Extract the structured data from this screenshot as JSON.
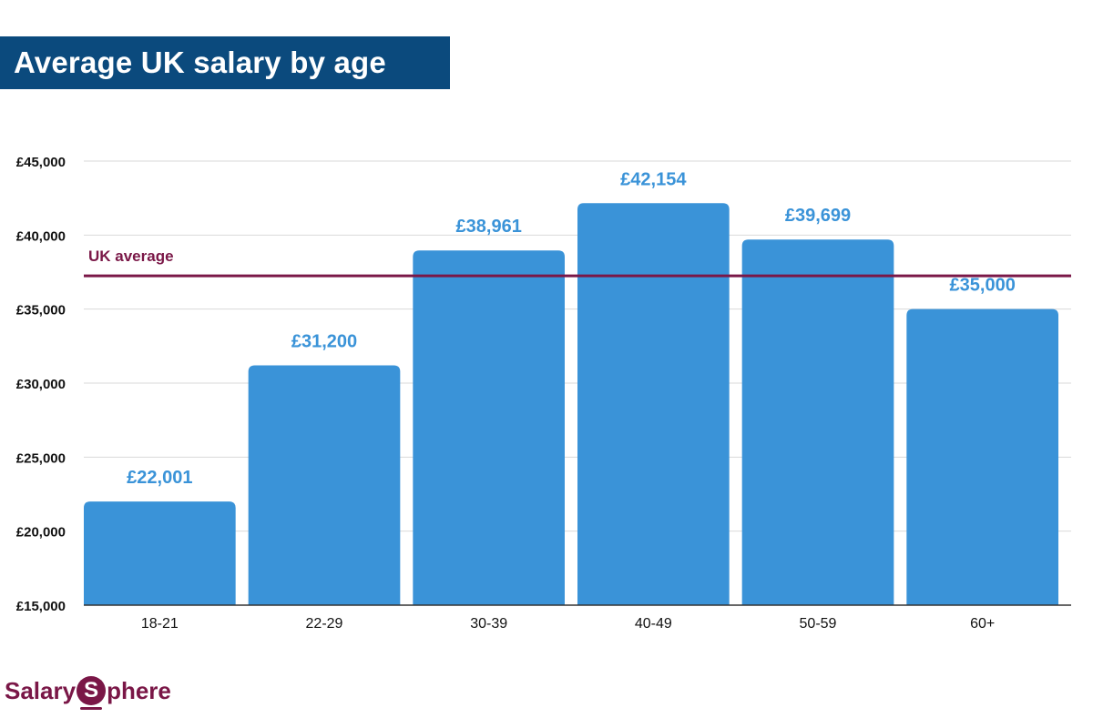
{
  "title": "Average UK salary by age",
  "colors": {
    "bar": "#3a93d8",
    "value_label": "#3a93d8",
    "average_line": "#7a1747",
    "banner": "#0b4a7d",
    "grid": "#d9d9d9"
  },
  "chart_data": {
    "type": "bar",
    "title": "Average UK salary by age",
    "xlabel": "",
    "ylabel": "",
    "categories": [
      "18-21",
      "22-29",
      "30-39",
      "40-49",
      "50-59",
      "60+"
    ],
    "values": [
      22001,
      31200,
      38961,
      42154,
      39699,
      35000
    ],
    "value_labels": [
      "£22,001",
      "£31,200",
      "£38,961",
      "£42,154",
      "£39,699",
      "£35,000"
    ],
    "ylim": [
      15000,
      45000
    ],
    "y_ticks": [
      15000,
      20000,
      25000,
      30000,
      35000,
      40000,
      45000
    ],
    "y_tick_labels": [
      "£15,000",
      "£20,000",
      "£25,000",
      "£30,000",
      "£35,000",
      "£40,000",
      "£45,000"
    ],
    "reference_line": {
      "label": "UK average",
      "value": 37250
    },
    "grid": true,
    "legend": "none"
  },
  "logo": {
    "text_left": "Salary",
    "text_circle": "S",
    "text_right": "phere"
  }
}
